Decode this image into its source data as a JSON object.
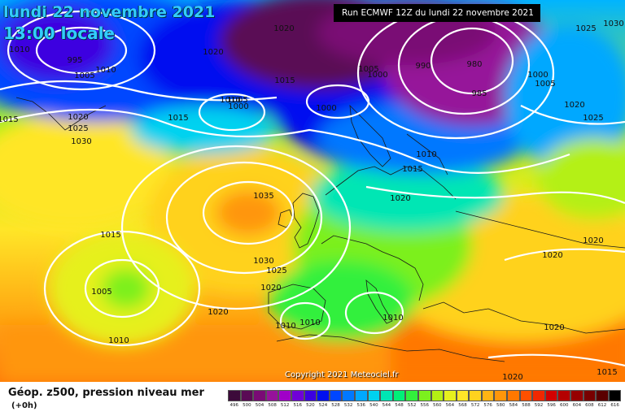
{
  "title": {
    "date": "lundi 22 novembre 2021",
    "time": "13:00 locale"
  },
  "run_info": "Run ECMWF 12Z du lundi 22 novembre 2021",
  "copyright": "Copyright 2021 Meteociel.fr",
  "legend": {
    "title": "Géop. z500, pression niveau mer",
    "subtitle": "(+0h)",
    "scale": [
      {
        "label": "496",
        "color": "#3c0a3a"
      },
      {
        "label": "500",
        "color": "#5a0a55"
      },
      {
        "label": "504",
        "color": "#7a0a75"
      },
      {
        "label": "508",
        "color": "#96129a"
      },
      {
        "label": "512",
        "color": "#a000c8"
      },
      {
        "label": "516",
        "color": "#7000d8"
      },
      {
        "label": "520",
        "color": "#3c00e0"
      },
      {
        "label": "524",
        "color": "#0010f0"
      },
      {
        "label": "528",
        "color": "#0046ff"
      },
      {
        "label": "532",
        "color": "#0078ff"
      },
      {
        "label": "536",
        "color": "#00a8ff"
      },
      {
        "label": "540",
        "color": "#00d2f0"
      },
      {
        "label": "544",
        "color": "#00e6b4"
      },
      {
        "label": "548",
        "color": "#00f078"
      },
      {
        "label": "552",
        "color": "#32f03c"
      },
      {
        "label": "556",
        "color": "#7cf01e"
      },
      {
        "label": "560",
        "color": "#b4f014"
      },
      {
        "label": "564",
        "color": "#e6f01e"
      },
      {
        "label": "568",
        "color": "#ffe628"
      },
      {
        "label": "572",
        "color": "#ffd21e"
      },
      {
        "label": "576",
        "color": "#ffb414"
      },
      {
        "label": "580",
        "color": "#ff960a"
      },
      {
        "label": "584",
        "color": "#ff7800"
      },
      {
        "label": "588",
        "color": "#ff5000"
      },
      {
        "label": "592",
        "color": "#f02800"
      },
      {
        "label": "596",
        "color": "#d20000"
      },
      {
        "label": "600",
        "color": "#b40000"
      },
      {
        "label": "604",
        "color": "#960000"
      },
      {
        "label": "608",
        "color": "#780000"
      },
      {
        "label": "612",
        "color": "#5a0000"
      },
      {
        "label": "616",
        "color": "#000000"
      }
    ]
  },
  "isobar_labels": [
    "1010",
    "995",
    "1005",
    "1010",
    "1020",
    "1025",
    "1030",
    "1015",
    "1020",
    "1020",
    "1015",
    "1015",
    "1010",
    "1005",
    "1000",
    "1000",
    "1005",
    "1000",
    "990",
    "980",
    "985",
    "1000",
    "1005",
    "1025",
    "1030",
    "1020",
    "1025",
    "1010",
    "1015",
    "1020",
    "1035",
    "1015",
    "1030",
    "1025",
    "1020",
    "1005",
    "1020",
    "1010",
    "1010",
    "1010",
    "1010",
    "1020",
    "1020",
    "1020",
    "1015",
    "1020"
  ]
}
